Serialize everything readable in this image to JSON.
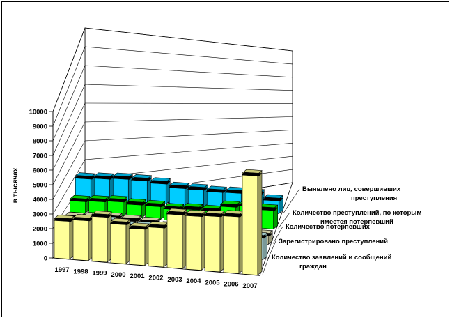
{
  "chart_data": {
    "type": "bar",
    "style": "3d-stacked-rows",
    "ylabel": "в тысячах",
    "yticks": [
      0,
      1000,
      2000,
      3000,
      4000,
      5000,
      6000,
      7000,
      8000,
      9000,
      10000
    ],
    "ylim": [
      0,
      10000
    ],
    "categories": [
      "1997",
      "1998",
      "1999",
      "2000",
      "2001",
      "2002",
      "2003",
      "2004",
      "2005",
      "2006",
      "2007"
    ],
    "series": [
      {
        "name": "Количество заявлений и сообщений граждан",
        "label_lines": [
          "Количество заявлений и сообщений",
          "граждан"
        ],
        "color": "#ffff99",
        "values": [
          2700,
          2850,
          3200,
          2800,
          2600,
          2800,
          3800,
          3800,
          3900,
          4000,
          6900
        ]
      },
      {
        "name": "Зарегистрировано преступлений",
        "label_lines": [
          "Зарегистрировано преступлений"
        ],
        "color": "#ccffff",
        "values": [
          1400,
          1550,
          1800,
          1600,
          1650,
          1300,
          1350,
          1300,
          1650,
          1800,
          1600
        ]
      },
      {
        "name": "Количество потерпевших",
        "label_lines": [
          "Количество потерпевших"
        ],
        "color": "#ffffcc",
        "values": [
          800,
          900,
          1000,
          950,
          900,
          700,
          650,
          700,
          800,
          850,
          700
        ]
      },
      {
        "name": "Количество преступлений, по которым имеется потерпевший",
        "label_lines": [
          "Количество преступлений, по которым",
          "имеется потерпевший"
        ],
        "color": "#00ff00",
        "values": [
          900,
          1000,
          1100,
          1000,
          1000,
          900,
          1000,
          1000,
          1400,
          1550,
          1400
        ]
      },
      {
        "name": "Выявлено лиц, совершивших преступления",
        "label_lines": [
          "Выявлено лиц, совершивших",
          "преступления"
        ],
        "color": "#00ccff",
        "values": [
          1400,
          1500,
          1600,
          1600,
          1500,
          1300,
          1300,
          1250,
          1300,
          1300,
          1000
        ]
      }
    ],
    "grid": true,
    "legend": "right, labels beside each row"
  }
}
